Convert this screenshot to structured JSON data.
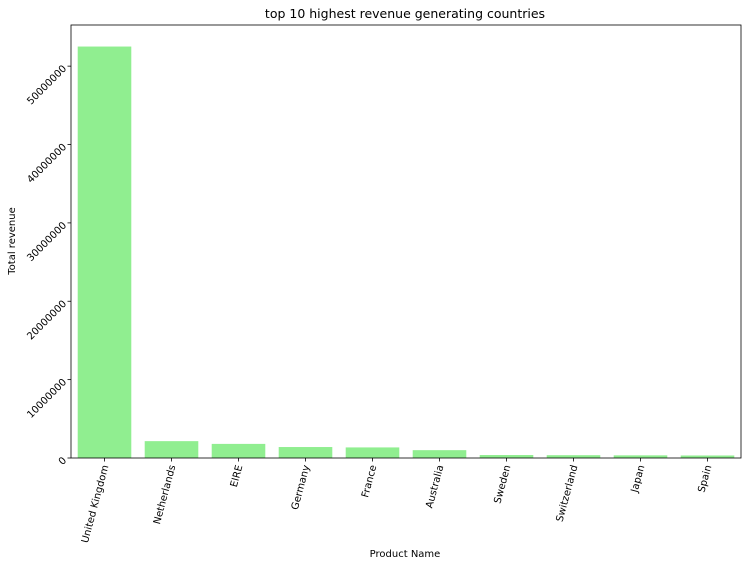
{
  "chart_data": {
    "type": "bar",
    "title": "top 10 highest revenue generating countries",
    "xlabel": "Product Name",
    "ylabel": "Total revenue",
    "categories": [
      "United Kingdom",
      "Netherlands",
      "EIRE",
      "Germany",
      "France",
      "Australia",
      "Sweden",
      "Switzerland",
      "Japan",
      "Spain"
    ],
    "values": [
      52500000,
      2150000,
      1800000,
      1400000,
      1350000,
      1000000,
      380000,
      360000,
      340000,
      320000
    ],
    "ylim": [
      0,
      55250000
    ],
    "yticks": [
      0,
      10000000,
      20000000,
      30000000,
      40000000,
      50000000
    ],
    "ytick_labels": [
      "0",
      "10000000",
      "20000000",
      "30000000",
      "40000000",
      "50000000"
    ],
    "bar_color": "#90ee90",
    "grid": false,
    "legend": "none"
  }
}
